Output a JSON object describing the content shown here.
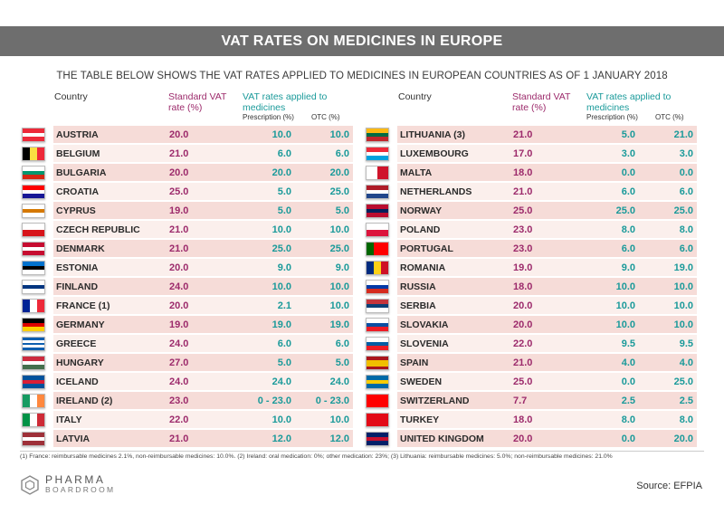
{
  "title": "VAT RATES ON MEDICINES IN EUROPE",
  "subtitle": "THE TABLE BELOW SHOWS THE VAT RATES APPLIED TO MEDICINES IN EUROPEAN COUNTRIES AS OF 1 JANUARY 2018",
  "headers": {
    "country": "Country",
    "standard": "Standard VAT rate (%)",
    "vat": "VAT rates applied to medicines",
    "prescription": "Prescription (%)",
    "otc": "OTC (%)"
  },
  "left_rows": [
    {
      "country": "AUSTRIA",
      "standard": "20.0",
      "prescription": "10.0",
      "otc": "10.0",
      "flag": {
        "dir": "h",
        "colors": [
          "#ed2939",
          "#ffffff",
          "#ed2939"
        ]
      }
    },
    {
      "country": "BELGIUM",
      "standard": "21.0",
      "prescription": "6.0",
      "otc": "6.0",
      "flag": {
        "dir": "v",
        "colors": [
          "#000000",
          "#fae042",
          "#ed2939"
        ]
      }
    },
    {
      "country": "BULGARIA",
      "standard": "20.0",
      "prescription": "20.0",
      "otc": "20.0",
      "flag": {
        "dir": "h",
        "colors": [
          "#ffffff",
          "#00966e",
          "#d62612"
        ]
      }
    },
    {
      "country": "CROATIA",
      "standard": "25.0",
      "prescription": "5.0",
      "otc": "25.0",
      "flag": {
        "dir": "h",
        "colors": [
          "#ff0000",
          "#ffffff",
          "#171796"
        ]
      }
    },
    {
      "country": "CYPRUS",
      "standard": "19.0",
      "prescription": "5.0",
      "otc": "5.0",
      "flag": {
        "dir": "h",
        "colors": [
          "#ffffff",
          "#d57800",
          "#ffffff"
        ]
      }
    },
    {
      "country": "CZECH REPUBLIC",
      "standard": "21.0",
      "prescription": "10.0",
      "otc": "10.0",
      "flag": {
        "dir": "h",
        "colors": [
          "#ffffff",
          "#d7141a"
        ]
      }
    },
    {
      "country": "DENMARK",
      "standard": "21.0",
      "prescription": "25.0",
      "otc": "25.0",
      "flag": {
        "dir": "h",
        "colors": [
          "#c60c30",
          "#ffffff",
          "#c60c30"
        ]
      }
    },
    {
      "country": "ESTONIA",
      "standard": "20.0",
      "prescription": "9.0",
      "otc": "9.0",
      "flag": {
        "dir": "h",
        "colors": [
          "#0072ce",
          "#000000",
          "#ffffff"
        ]
      }
    },
    {
      "country": "FINLAND",
      "standard": "24.0",
      "prescription": "10.0",
      "otc": "10.0",
      "flag": {
        "dir": "h",
        "colors": [
          "#ffffff",
          "#003580",
          "#ffffff"
        ]
      }
    },
    {
      "country": "FRANCE (1)",
      "standard": "20.0",
      "prescription": "2.1",
      "otc": "10.0",
      "flag": {
        "dir": "v",
        "colors": [
          "#002395",
          "#ffffff",
          "#ed2939"
        ]
      }
    },
    {
      "country": "GERMANY",
      "standard": "19.0",
      "prescription": "19.0",
      "otc": "19.0",
      "flag": {
        "dir": "h",
        "colors": [
          "#000000",
          "#dd0000",
          "#ffce00"
        ]
      }
    },
    {
      "country": "GREECE",
      "standard": "24.0",
      "prescription": "6.0",
      "otc": "6.0",
      "flag": {
        "dir": "h",
        "colors": [
          "#0d5eaf",
          "#ffffff",
          "#0d5eaf",
          "#ffffff",
          "#0d5eaf"
        ]
      }
    },
    {
      "country": "HUNGARY",
      "standard": "27.0",
      "prescription": "5.0",
      "otc": "5.0",
      "flag": {
        "dir": "h",
        "colors": [
          "#cd2a3e",
          "#ffffff",
          "#436f4d"
        ]
      }
    },
    {
      "country": "ICELAND",
      "standard": "24.0",
      "prescription": "24.0",
      "otc": "24.0",
      "flag": {
        "dir": "h",
        "colors": [
          "#02529c",
          "#dc1e35",
          "#02529c"
        ]
      }
    },
    {
      "country": "IRELAND (2)",
      "standard": "23.0",
      "prescription": "0 - 23.0",
      "otc": "0 - 23.0",
      "flag": {
        "dir": "v",
        "colors": [
          "#169b62",
          "#ffffff",
          "#ff883e"
        ]
      }
    },
    {
      "country": "ITALY",
      "standard": "22.0",
      "prescription": "10.0",
      "otc": "10.0",
      "flag": {
        "dir": "v",
        "colors": [
          "#009246",
          "#ffffff",
          "#ce2b37"
        ]
      }
    },
    {
      "country": "LATVIA",
      "standard": "21.0",
      "prescription": "12.0",
      "otc": "12.0",
      "flag": {
        "dir": "h",
        "colors": [
          "#9e3039",
          "#ffffff",
          "#9e3039"
        ]
      }
    }
  ],
  "right_rows": [
    {
      "country": "LITHUANIA (3)",
      "standard": "21.0",
      "prescription": "5.0",
      "otc": "21.0",
      "flag": {
        "dir": "h",
        "colors": [
          "#fdb913",
          "#006a44",
          "#c1272d"
        ]
      }
    },
    {
      "country": "LUXEMBOURG",
      "standard": "17.0",
      "prescription": "3.0",
      "otc": "3.0",
      "flag": {
        "dir": "h",
        "colors": [
          "#ed2939",
          "#ffffff",
          "#00a1de"
        ]
      }
    },
    {
      "country": "MALTA",
      "standard": "18.0",
      "prescription": "0.0",
      "otc": "0.0",
      "flag": {
        "dir": "v",
        "colors": [
          "#ffffff",
          "#cf142b"
        ]
      }
    },
    {
      "country": "NETHERLANDS",
      "standard": "21.0",
      "prescription": "6.0",
      "otc": "6.0",
      "flag": {
        "dir": "h",
        "colors": [
          "#ae1c28",
          "#ffffff",
          "#21468b"
        ]
      }
    },
    {
      "country": "NORWAY",
      "standard": "25.0",
      "prescription": "25.0",
      "otc": "25.0",
      "flag": {
        "dir": "h",
        "colors": [
          "#ba0c2f",
          "#00205b",
          "#ba0c2f"
        ]
      }
    },
    {
      "country": "POLAND",
      "standard": "23.0",
      "prescription": "8.0",
      "otc": "8.0",
      "flag": {
        "dir": "h",
        "colors": [
          "#ffffff",
          "#dc143c"
        ]
      }
    },
    {
      "country": "PORTUGAL",
      "standard": "23.0",
      "prescription": "6.0",
      "otc": "6.0",
      "flag": {
        "dir": "v",
        "colors": [
          "#006600",
          "#ff0000",
          "#ff0000"
        ]
      }
    },
    {
      "country": "ROMANIA",
      "standard": "19.0",
      "prescription": "9.0",
      "otc": "19.0",
      "flag": {
        "dir": "v",
        "colors": [
          "#002b7f",
          "#fcd116",
          "#ce1126"
        ]
      }
    },
    {
      "country": "RUSSIA",
      "standard": "18.0",
      "prescription": "10.0",
      "otc": "10.0",
      "flag": {
        "dir": "h",
        "colors": [
          "#ffffff",
          "#0039a6",
          "#d52b1e"
        ]
      }
    },
    {
      "country": "SERBIA",
      "standard": "20.0",
      "prescription": "10.0",
      "otc": "10.0",
      "flag": {
        "dir": "h",
        "colors": [
          "#c6363c",
          "#0c4076",
          "#ffffff"
        ]
      }
    },
    {
      "country": "SLOVAKIA",
      "standard": "20.0",
      "prescription": "10.0",
      "otc": "10.0",
      "flag": {
        "dir": "h",
        "colors": [
          "#ffffff",
          "#0b4ea2",
          "#ee1c25"
        ]
      }
    },
    {
      "country": "SLOVENIA",
      "standard": "22.0",
      "prescription": "9.5",
      "otc": "9.5",
      "flag": {
        "dir": "h",
        "colors": [
          "#ffffff",
          "#005da4",
          "#ed1c24"
        ]
      }
    },
    {
      "country": "SPAIN",
      "standard": "21.0",
      "prescription": "4.0",
      "otc": "4.0",
      "flag": {
        "dir": "h",
        "colors": [
          "#aa151b",
          "#f1bf00",
          "#f1bf00",
          "#aa151b"
        ]
      }
    },
    {
      "country": "SWEDEN",
      "standard": "25.0",
      "prescription": "0.0",
      "otc": "25.0",
      "flag": {
        "dir": "h",
        "colors": [
          "#006aa7",
          "#fecc00",
          "#006aa7"
        ]
      }
    },
    {
      "country": "SWITZERLAND",
      "standard": "7.7",
      "prescription": "2.5",
      "otc": "2.5",
      "flag": {
        "dir": "h",
        "colors": [
          "#ff0000"
        ]
      }
    },
    {
      "country": "TURKEY",
      "standard": "18.0",
      "prescription": "8.0",
      "otc": "8.0",
      "flag": {
        "dir": "h",
        "colors": [
          "#e30a17"
        ]
      }
    },
    {
      "country": "UNITED KINGDOM",
      "standard": "20.0",
      "prescription": "0.0",
      "otc": "20.0",
      "flag": {
        "dir": "h",
        "colors": [
          "#012169",
          "#c8102e",
          "#012169"
        ]
      }
    }
  ],
  "footnote": "(1) France: reimbursable medicines 2.1%, non-reimbursable medicines: 10.0%. (2) Ireland: oral medication: 0%; other medication: 23%; (3) Lithuania: reimbursable medicines: 5.0%; non-reimbursable medicines: 21.0%",
  "logo": {
    "line1": "PHARMA",
    "line2": "BOARDROOM"
  },
  "source": "Source: EFPIA"
}
